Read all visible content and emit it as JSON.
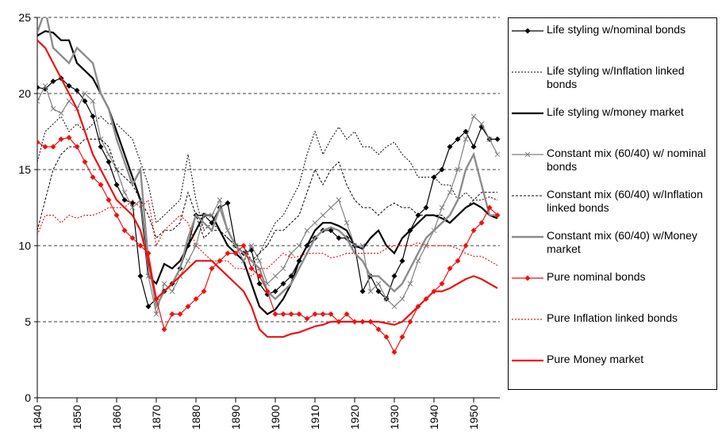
{
  "chart_data": {
    "type": "line",
    "x": [
      1840,
      1842,
      1844,
      1846,
      1848,
      1850,
      1852,
      1854,
      1856,
      1858,
      1860,
      1862,
      1864,
      1866,
      1868,
      1870,
      1872,
      1874,
      1876,
      1878,
      1880,
      1882,
      1884,
      1886,
      1888,
      1890,
      1892,
      1894,
      1896,
      1898,
      1900,
      1902,
      1904,
      1906,
      1908,
      1910,
      1912,
      1914,
      1916,
      1918,
      1920,
      1922,
      1924,
      1926,
      1928,
      1930,
      1932,
      1934,
      1936,
      1938,
      1940,
      1942,
      1944,
      1946,
      1948,
      1950,
      1952,
      1954,
      1956
    ],
    "xlim": [
      1840,
      1956.6
    ],
    "xticks": [
      1840,
      1850,
      1860,
      1870,
      1880,
      1890,
      1900,
      1910,
      1920,
      1930,
      1940,
      1950
    ],
    "ylim": [
      0,
      25
    ],
    "yticks": [
      0,
      5,
      10,
      15,
      20,
      25
    ],
    "grid": true,
    "legend": "right",
    "series": [
      {
        "name": "Life styling w/nominal bonds",
        "color": "#000000",
        "style": "solid",
        "width": 1.2,
        "marker": "diamond",
        "values": [
          20.4,
          20.3,
          20.8,
          21,
          20.5,
          20.2,
          19.5,
          18.5,
          16.5,
          15.5,
          14,
          13,
          12.8,
          8,
          6,
          6.5,
          7,
          7.5,
          8.5,
          10,
          12,
          12,
          11.5,
          12.5,
          12.8,
          10,
          9.5,
          9.7,
          7.5,
          6.8,
          7,
          7.5,
          8,
          9,
          10,
          10.5,
          11,
          11,
          10.5,
          10.5,
          10,
          7,
          8,
          7,
          6.5,
          8,
          9,
          11,
          12,
          12.5,
          14.5,
          15,
          16.5,
          17,
          17.5,
          16.5,
          17.8,
          17,
          17
        ]
      },
      {
        "name": "Life styling w/Inflation linked bonds",
        "color": "#000000",
        "style": "dotted",
        "width": 1,
        "marker": "none",
        "values": [
          15.5,
          17.5,
          18,
          18.5,
          17.5,
          18,
          17.5,
          18,
          18.5,
          18,
          18,
          17.5,
          17,
          15.5,
          14,
          11.5,
          12,
          12.5,
          13,
          16,
          13,
          11,
          11.5,
          11,
          10.5,
          10,
          10,
          8.5,
          9.5,
          10.5,
          11.5,
          12,
          13,
          14,
          16,
          17.5,
          16,
          17,
          17.8,
          17,
          17.5,
          16.5,
          16.5,
          16,
          16.5,
          16.8,
          16,
          15.5,
          14.5,
          14.5,
          14.5,
          14,
          14,
          13,
          13.5,
          13,
          13,
          13.2,
          13
        ]
      },
      {
        "name": "Life styling w/money market",
        "color": "#000000",
        "style": "solid",
        "width": 2.2,
        "marker": "none",
        "values": [
          23.8,
          24.1,
          24,
          23.5,
          23.5,
          22,
          21.5,
          21,
          20,
          19,
          17.5,
          16,
          14.5,
          13,
          8,
          7.5,
          8.8,
          8.5,
          9,
          10,
          11,
          12,
          12,
          11,
          10,
          9.5,
          9,
          7.5,
          6,
          5.5,
          5.8,
          6.5,
          7.5,
          9,
          10,
          11,
          11.5,
          11.5,
          11.3,
          11,
          10,
          9.8,
          10.5,
          11,
          10,
          9.5,
          10.5,
          11,
          11.5,
          12,
          12,
          11.8,
          11.5,
          12,
          12.5,
          12.8,
          12.5,
          12,
          11.8
        ]
      },
      {
        "name": "Constant mix (60/40)  w/ nominal bonds",
        "color": "#7f7f7f",
        "style": "solid",
        "width": 1.2,
        "marker": "x",
        "values": [
          19.5,
          20.5,
          19,
          18.7,
          19.5,
          19,
          20,
          19.5,
          17,
          16,
          15,
          13.5,
          12.5,
          13,
          8,
          5.5,
          7.5,
          7,
          8,
          9,
          10,
          12,
          12,
          13,
          11,
          10,
          9,
          10,
          9,
          7.5,
          8,
          8.5,
          9.5,
          10,
          11,
          11.5,
          12,
          12.5,
          13,
          11.5,
          10,
          10,
          7,
          7.5,
          6.5,
          6,
          6.5,
          7.5,
          9,
          10,
          11,
          12.5,
          13.5,
          15,
          17,
          18.5,
          18,
          17,
          16
        ]
      },
      {
        "name": "Constant mix (60/40) w/Inflation linked bonds",
        "color": "#000000",
        "style": "dashed",
        "width": 1,
        "marker": "none",
        "values": [
          11,
          13,
          15,
          16,
          16.5,
          16.5,
          17,
          17,
          17,
          16.5,
          15,
          14.5,
          14,
          13,
          12,
          10.5,
          11,
          11,
          11.5,
          13.5,
          12,
          10.5,
          11,
          11,
          10.5,
          10,
          10,
          9,
          9.5,
          10,
          11,
          11,
          11.5,
          12,
          13.5,
          15,
          14,
          15,
          15.5,
          14,
          13,
          12.5,
          12.5,
          12,
          12.5,
          12.8,
          12.5,
          12.5,
          12,
          12,
          12,
          12,
          11.5,
          12,
          12.5,
          13,
          13.5,
          13.5,
          13.5
        ]
      },
      {
        "name": "Constant mix (60/40) w/Money market",
        "color": "#8c8c8c",
        "style": "solid",
        "width": 2.4,
        "marker": "none",
        "values": [
          24,
          25.5,
          23,
          22.5,
          22,
          23,
          22.5,
          22,
          20,
          19,
          17,
          15.5,
          14,
          15,
          9,
          6,
          7,
          7.5,
          8.5,
          10.5,
          12,
          11.5,
          11,
          12.5,
          11,
          10,
          9.5,
          9,
          8.5,
          7,
          6.5,
          7,
          7.5,
          8.5,
          9.5,
          10.5,
          11,
          11.2,
          11,
          10.5,
          9.5,
          9,
          8,
          8,
          7.5,
          7,
          7.5,
          8.5,
          9.5,
          10.5,
          11,
          11.5,
          12,
          13,
          15,
          16,
          14,
          12,
          12
        ]
      },
      {
        "name": "Pure nominal bonds",
        "color": "#ee1111",
        "style": "solid",
        "width": 1.2,
        "marker": "diamond",
        "values": [
          16.8,
          16.5,
          16.5,
          17,
          17.1,
          16.5,
          15.5,
          14.5,
          14,
          13,
          12,
          11,
          10.5,
          10,
          9.5,
          6.5,
          4.5,
          5.5,
          5.5,
          6,
          6.5,
          7,
          8.5,
          9,
          9.5,
          9.5,
          10,
          8.5,
          8,
          7,
          5.5,
          5.5,
          5.5,
          5.5,
          5.2,
          5.5,
          5.5,
          5.5,
          5,
          5.5,
          5,
          5,
          5,
          4.5,
          4,
          3,
          4,
          5,
          6,
          6.5,
          7,
          7.5,
          8.5,
          9,
          10,
          11,
          11.5,
          12.5,
          12
        ]
      },
      {
        "name": "Pure Inflation linked bonds",
        "color": "#ee1111",
        "style": "dotted",
        "width": 1.2,
        "marker": "none",
        "values": [
          10.7,
          12,
          12,
          11.5,
          12,
          11.8,
          12,
          12,
          12.2,
          12.5,
          12.5,
          12.5,
          13,
          12.5,
          13,
          10,
          11,
          11.5,
          12,
          11.5,
          10,
          9.5,
          9,
          9,
          9,
          8.5,
          8.5,
          8,
          8.5,
          8.5,
          9,
          9.5,
          9.2,
          9.3,
          9.5,
          9.5,
          9.5,
          9.2,
          9.3,
          9.5,
          9.5,
          9.5,
          9.5,
          9.5,
          9.8,
          10,
          10,
          10,
          10.2,
          10,
          10,
          10,
          10,
          9.8,
          9.5,
          9.3,
          9.3,
          9,
          8.7
        ]
      },
      {
        "name": "Pure Money market",
        "color": "#ee1111",
        "style": "solid",
        "width": 2.2,
        "marker": "none",
        "values": [
          23.5,
          23,
          22,
          21,
          20,
          19,
          17.5,
          16,
          15,
          14,
          13,
          12.5,
          12,
          11,
          9,
          6.5,
          7,
          7.5,
          8,
          8.5,
          9,
          9,
          9,
          8.5,
          8,
          7.5,
          7,
          6,
          4.5,
          4,
          4,
          4,
          4.2,
          4.3,
          4.5,
          4.7,
          4.8,
          5,
          5,
          5,
          5,
          5,
          5,
          5,
          4.9,
          4.8,
          5,
          5.5,
          6,
          6.5,
          7,
          7,
          7.2,
          7.5,
          7.8,
          8,
          7.8,
          7.5,
          7.2
        ]
      }
    ]
  }
}
